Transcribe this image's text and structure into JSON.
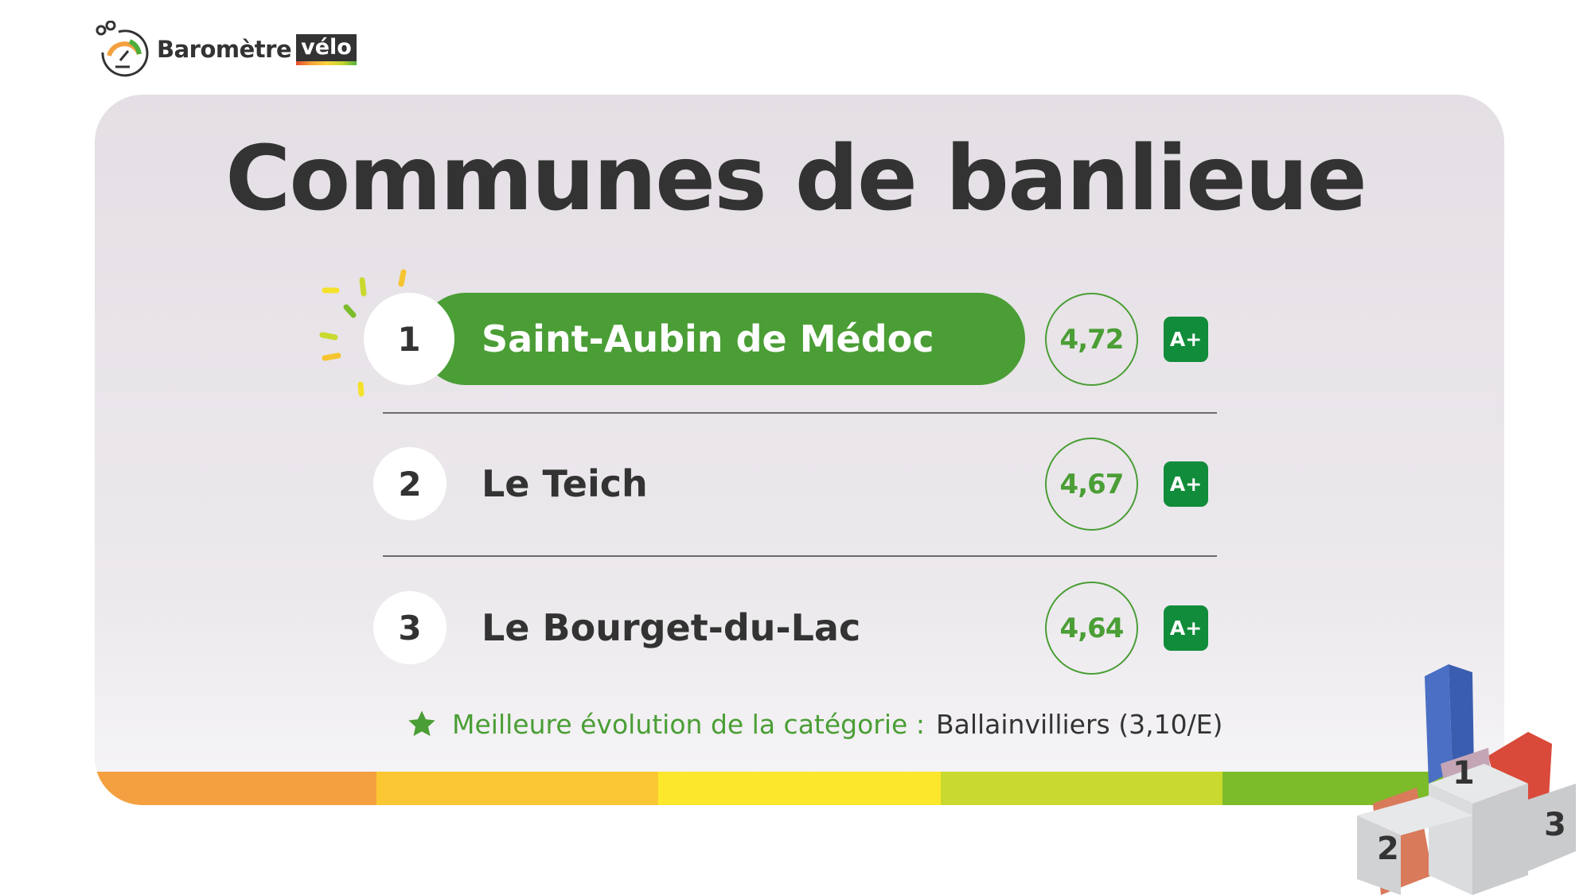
{
  "logo": {
    "text": "Baromètre",
    "highlight": "vélo"
  },
  "title": "Communes de banlieue",
  "ranking": [
    {
      "rank": "1",
      "name": "Saint-Aubin de Médoc",
      "score": "4,72",
      "grade": "A+"
    },
    {
      "rank": "2",
      "name": "Le Teich",
      "score": "4,67",
      "grade": "A+"
    },
    {
      "rank": "3",
      "name": "Le Bourget-du-Lac",
      "score": "4,64",
      "grade": "A+"
    }
  ],
  "footnote": {
    "icon": "star-icon",
    "label": "Meilleure évolution de la catégorie :",
    "value": "Ballainvilliers (3,10/E)"
  },
  "colors": {
    "accent": "#4a9e35",
    "grade": "#118c3a",
    "bar": [
      "#f4a040",
      "#fbc733",
      "#fce72c",
      "#c9d92e",
      "#7cbc2a"
    ]
  }
}
